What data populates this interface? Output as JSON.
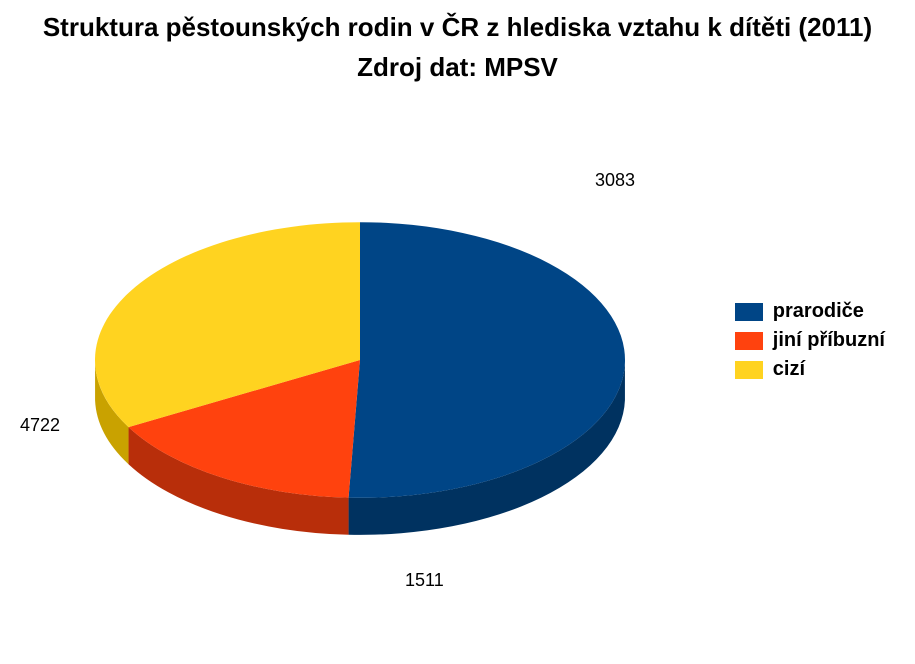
{
  "chart": {
    "type": "pie",
    "title": "Struktura pěstounských rodin v ČR z hlediska vztahu k dítěti (2011)",
    "subtitle": "Zdroj dat: MPSV",
    "title_fontsize": 26,
    "subtitle_fontsize": 26,
    "label_fontsize": 18,
    "legend_fontsize": 20,
    "background_color": "#ffffff",
    "slices": [
      {
        "label": "prarodiče",
        "value": 4722,
        "color": "#004586",
        "dark": "#003260"
      },
      {
        "label": "jiní příbuzní",
        "value": 1511,
        "color": "#ff420e",
        "dark": "#b82e0a"
      },
      {
        "label": "cizí",
        "value": 3083,
        "color": "#ffd320",
        "dark": "#c9a200"
      }
    ],
    "depth_ratio": 0.14,
    "tilt": 0.52,
    "start_angle_deg": -90
  }
}
